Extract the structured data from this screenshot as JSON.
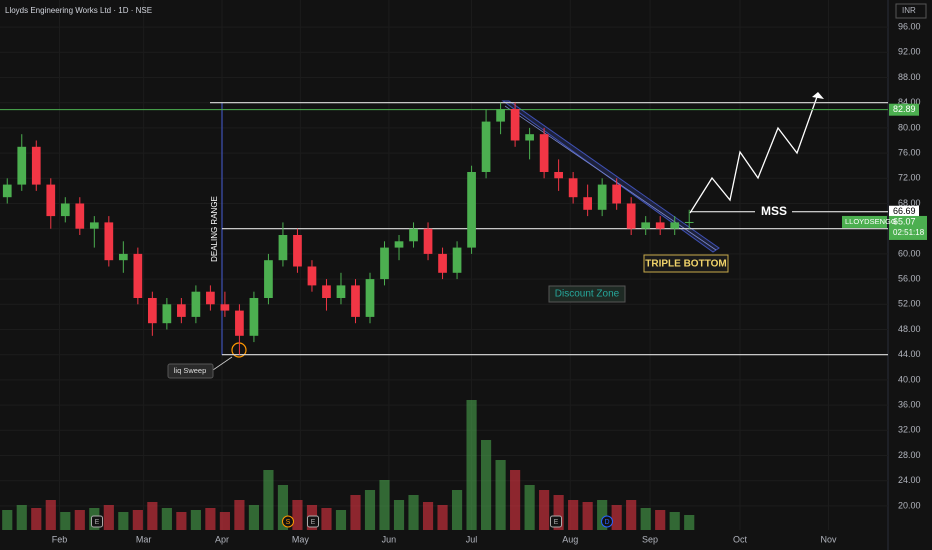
{
  "chart_data": {
    "type": "candlestick",
    "title": "Lloyds Engineering Works Ltd · 1D · NSE",
    "currency": "INR",
    "symbol": "LLOYDSENGG",
    "last_price": 65.07,
    "countdown": "02:51:18",
    "resistance": 82.89,
    "mss_level": 66.69,
    "mss_label": "MSS",
    "range_lines": [
      84,
      64,
      44
    ],
    "annotations": {
      "dealing_range": "DEALING RANGE",
      "liq_sweep": "liq Sweep",
      "triple_bottom": "TRIPLE BOTTOM",
      "discount_zone": "Discount Zone"
    },
    "events": [
      "E",
      "S",
      "E",
      "E",
      "D"
    ],
    "up_color": "#4caf50",
    "down_color": "#f23645",
    "xlim": [
      -0.5,
      60.7
    ],
    "xticks": [
      {
        "value": 3.6,
        "label": "Feb"
      },
      {
        "value": 9.4,
        "label": "Mar"
      },
      {
        "value": 14.8,
        "label": "Apr"
      },
      {
        "value": 20.2,
        "label": "May"
      },
      {
        "value": 26.3,
        "label": "Jun"
      },
      {
        "value": 32,
        "label": "Jul"
      },
      {
        "value": 38.8,
        "label": "Aug"
      },
      {
        "value": 44.3,
        "label": "Sep"
      },
      {
        "value": 50.5,
        "label": "Oct"
      },
      {
        "value": 56.6,
        "label": "Nov"
      }
    ],
    "ylim": [
      13,
      100.3
    ],
    "yticks": [
      {
        "value": 20,
        "label": "20.00"
      },
      {
        "value": 24,
        "label": "24.00"
      },
      {
        "value": 28,
        "label": "28.00"
      },
      {
        "value": 32,
        "label": "32.00"
      },
      {
        "value": 36,
        "label": "36.00"
      },
      {
        "value": 40,
        "label": "40.00"
      },
      {
        "value": 44,
        "label": "44.00"
      },
      {
        "value": 48,
        "label": "48.00"
      },
      {
        "value": 52,
        "label": "52.00"
      },
      {
        "value": 56,
        "label": "56.00"
      },
      {
        "value": 60,
        "label": "60.00"
      },
      {
        "value": 64,
        "label": "64.00"
      },
      {
        "value": 68,
        "label": "68.00"
      },
      {
        "value": 72,
        "label": "72.00"
      },
      {
        "value": 76,
        "label": "76.00"
      },
      {
        "value": 80,
        "label": "80.00"
      },
      {
        "value": 84,
        "label": "84.00"
      },
      {
        "value": 88,
        "label": "88.00"
      },
      {
        "value": 92,
        "label": "92.00"
      },
      {
        "value": 96,
        "label": "96.00"
      }
    ],
    "open": [
      69,
      71,
      77,
      71,
      66,
      68,
      64,
      65,
      59,
      60,
      53,
      49,
      52,
      50,
      54,
      52,
      51,
      47,
      53,
      59,
      63,
      58,
      55,
      53,
      55,
      50,
      56,
      61,
      62,
      64,
      60,
      57,
      61,
      73,
      81,
      83,
      78,
      79,
      73,
      72,
      69,
      67,
      71,
      68,
      64,
      65,
      64,
      65
    ],
    "high": [
      72,
      79,
      78,
      72,
      69,
      69,
      66,
      66,
      62,
      61,
      54,
      53,
      53,
      55,
      55,
      54,
      52,
      54,
      60,
      65,
      64,
      59,
      56,
      57,
      56,
      57,
      62,
      63,
      65,
      65,
      61,
      62,
      74,
      83,
      84,
      84,
      80,
      80,
      75,
      73,
      71,
      72,
      72,
      69,
      66,
      66,
      66,
      67
    ],
    "low": [
      68,
      70,
      70,
      64,
      65,
      63,
      61,
      58,
      57,
      52,
      47,
      48,
      49,
      49,
      51,
      50,
      44,
      46,
      52,
      58,
      57,
      54,
      51,
      52,
      49,
      49,
      55,
      59,
      61,
      59,
      56,
      56,
      60,
      72,
      79,
      77,
      75,
      72,
      70,
      68,
      66,
      66,
      67,
      63,
      63,
      63,
      63,
      64
    ],
    "close": [
      71,
      77,
      71,
      66,
      68,
      64,
      65,
      59,
      60,
      53,
      49,
      52,
      50,
      54,
      52,
      51,
      47,
      53,
      59,
      63,
      58,
      55,
      53,
      55,
      50,
      56,
      61,
      62,
      64,
      60,
      57,
      61,
      73,
      81,
      83,
      78,
      79,
      73,
      72,
      69,
      67,
      71,
      68,
      64,
      65,
      64,
      65,
      65.07
    ],
    "volume": [
      20,
      25,
      22,
      30,
      18,
      20,
      22,
      25,
      18,
      20,
      28,
      22,
      18,
      20,
      22,
      18,
      30,
      25,
      60,
      45,
      30,
      25,
      22,
      20,
      35,
      40,
      50,
      30,
      35,
      28,
      25,
      40,
      130,
      90,
      70,
      60,
      45,
      40,
      35,
      30,
      28,
      30,
      25,
      30,
      22,
      20,
      18,
      15
    ]
  }
}
